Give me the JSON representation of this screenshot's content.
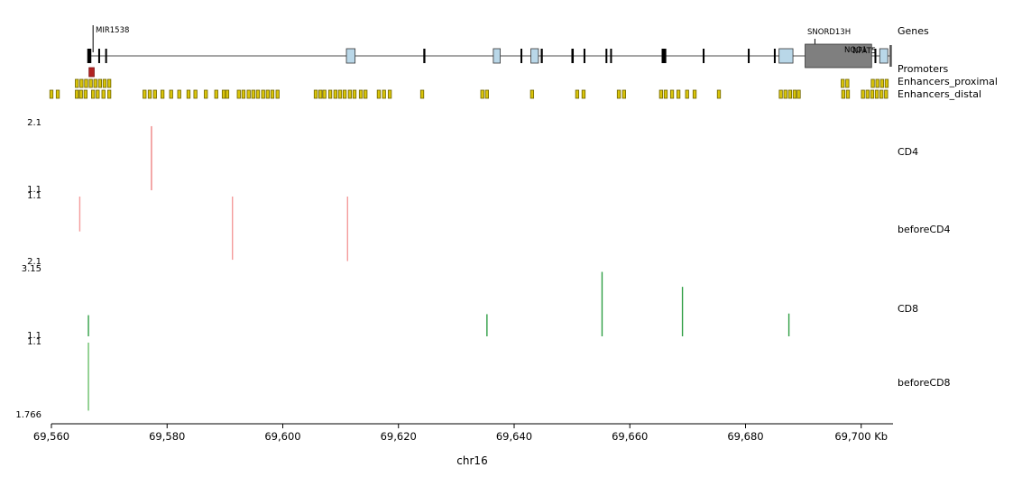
{
  "chart_data": {
    "type": "genome-tracks",
    "chromosome": "chr16",
    "unit": "Kb",
    "xaxis": {
      "title": "chr16",
      "domain_kb": [
        69560.0,
        69705.5
      ],
      "ticks_kb": [
        69560,
        69580,
        69600,
        69620,
        69640,
        69660,
        69680,
        69700
      ],
      "tick_labels": [
        "69,560",
        "69,580",
        "69,600",
        "69,620",
        "69,640",
        "69,660",
        "69,680",
        "69,700 Kb"
      ]
    },
    "gene_track": {
      "label": "Genes",
      "line_from_kb": 69566.5,
      "line_to_kb": 69705.2,
      "gene_labels": [
        {
          "text": "MIR1538",
          "marker_kb": 69567.2
        },
        {
          "text": "SNORD13H",
          "marker_kb": 69692.0
        },
        {
          "text": "NQO1"
        },
        {
          "text": "NFAT5"
        }
      ],
      "colors": {
        "exon": "#000000",
        "utr": "#b9d7e8",
        "gene_box": "#7f7f7f"
      },
      "features": [
        {
          "kb": 69566.2,
          "w": 0.7,
          "t": "exon"
        },
        {
          "kb": 69568.1,
          "w": 0.3,
          "t": "exon"
        },
        {
          "kb": 69569.3,
          "w": 0.3,
          "t": "exon"
        },
        {
          "kb": 69611.0,
          "w": 1.5,
          "t": "utr"
        },
        {
          "kb": 69624.3,
          "w": 0.35,
          "t": "exon"
        },
        {
          "kb": 69636.4,
          "w": 1.2,
          "t": "utr"
        },
        {
          "kb": 69641.1,
          "w": 0.3,
          "t": "exon"
        },
        {
          "kb": 69642.9,
          "w": 1.3,
          "t": "utr"
        },
        {
          "kb": 69644.6,
          "w": 0.35,
          "t": "exon"
        },
        {
          "kb": 69649.9,
          "w": 0.4,
          "t": "exon"
        },
        {
          "kb": 69652.0,
          "w": 0.3,
          "t": "exon"
        },
        {
          "kb": 69655.8,
          "w": 0.3,
          "t": "exon"
        },
        {
          "kb": 69656.6,
          "w": 0.3,
          "t": "exon"
        },
        {
          "kb": 69665.5,
          "w": 0.8,
          "t": "exon"
        },
        {
          "kb": 69672.6,
          "w": 0.3,
          "t": "exon"
        },
        {
          "kb": 69680.4,
          "w": 0.3,
          "t": "exon"
        },
        {
          "kb": 69684.9,
          "w": 0.3,
          "t": "exon"
        },
        {
          "kb": 69685.8,
          "w": 2.4,
          "t": "utr"
        },
        {
          "kb": 69690.3,
          "w": 11.5,
          "t": "gene_box"
        },
        {
          "kb": 69702.3,
          "w": 0.3,
          "t": "exon"
        },
        {
          "kb": 69703.2,
          "w": 1.4,
          "t": "utr"
        },
        {
          "kb": 69704.9,
          "w": 0.4,
          "t": "exon_tall"
        }
      ]
    },
    "promoters": {
      "label": "Promoters",
      "color": "#b22222",
      "items": [
        {
          "kb": 69566.5,
          "w": 0.9
        }
      ]
    },
    "enhancers_proximal": {
      "label": "Enhancers_proximal",
      "color": "#d9c40a",
      "positions_kb": [
        69564.4,
        69565.2,
        69566.0,
        69566.8,
        69567.6,
        69568.4,
        69569.2,
        69570.0,
        69696.8,
        69697.6,
        69702.0,
        69702.8,
        69703.6,
        69704.4
      ]
    },
    "enhancers_distal": {
      "label": "Enhancers_distal",
      "color": "#d9c40a",
      "positions_kb": [
        69560.0,
        69561.1,
        69564.4,
        69565.1,
        69565.9,
        69567.2,
        69568.0,
        69569.0,
        69570.0,
        69576.1,
        69577.0,
        69577.9,
        69579.2,
        69580.7,
        69582.1,
        69583.7,
        69584.9,
        69586.7,
        69588.5,
        69589.8,
        69590.4,
        69592.4,
        69593.2,
        69594.1,
        69594.9,
        69595.7,
        69596.6,
        69597.4,
        69598.2,
        69599.1,
        69605.7,
        69606.5,
        69607.2,
        69608.2,
        69609.1,
        69609.9,
        69610.7,
        69611.6,
        69612.4,
        69613.5,
        69614.3,
        69616.6,
        69617.5,
        69618.5,
        69624.1,
        69634.5,
        69635.3,
        69643.1,
        69650.9,
        69652.0,
        69658.1,
        69659.0,
        69665.4,
        69666.2,
        69667.3,
        69668.4,
        69669.9,
        69671.2,
        69675.4,
        69686.1,
        69686.9,
        69687.7,
        69688.5,
        69689.2,
        69696.9,
        69697.7,
        69700.3,
        69701.1,
        69701.9,
        69702.7,
        69703.5,
        69704.3
      ]
    },
    "signal_tracks": [
      {
        "id": "CD4",
        "label": "CD4",
        "color": "#ef8484",
        "direction": "up",
        "ylim": [
          1.1,
          2.1
        ],
        "top_label": "2.1",
        "bottom_label": "1.1",
        "peaks": [
          {
            "kb": 69577.3,
            "value": 2.06
          }
        ]
      },
      {
        "id": "beforeCD4",
        "label": "beforeCD4",
        "color": "#f49b9b",
        "direction": "down",
        "ylim": [
          1.1,
          2.1
        ],
        "top_label": "1.1",
        "bottom_label": "2.1",
        "peaks": [
          {
            "kb": 69564.9,
            "value": 1.63
          },
          {
            "kb": 69591.3,
            "value": 2.06
          },
          {
            "kb": 69611.2,
            "value": 2.08
          }
        ]
      },
      {
        "id": "CD8",
        "label": "CD8",
        "color": "#2f9e44",
        "direction": "up",
        "ylim": [
          1.1,
          3.15
        ],
        "top_label": "3.15",
        "bottom_label": "1.1",
        "peaks": [
          {
            "kb": 69566.4,
            "value": 1.75
          },
          {
            "kb": 69635.3,
            "value": 1.78
          },
          {
            "kb": 69655.2,
            "value": 3.08
          },
          {
            "kb": 69669.1,
            "value": 2.62
          },
          {
            "kb": 69687.5,
            "value": 1.8
          }
        ]
      },
      {
        "id": "beforeCD8",
        "label": "beforeCD8",
        "color": "#6abf69",
        "direction": "down",
        "ylim": [
          1.1,
          1.766
        ],
        "top_label": "1.1",
        "bottom_label": "1.766",
        "peaks": [
          {
            "kb": 69566.4,
            "value": 1.72
          }
        ]
      }
    ]
  }
}
